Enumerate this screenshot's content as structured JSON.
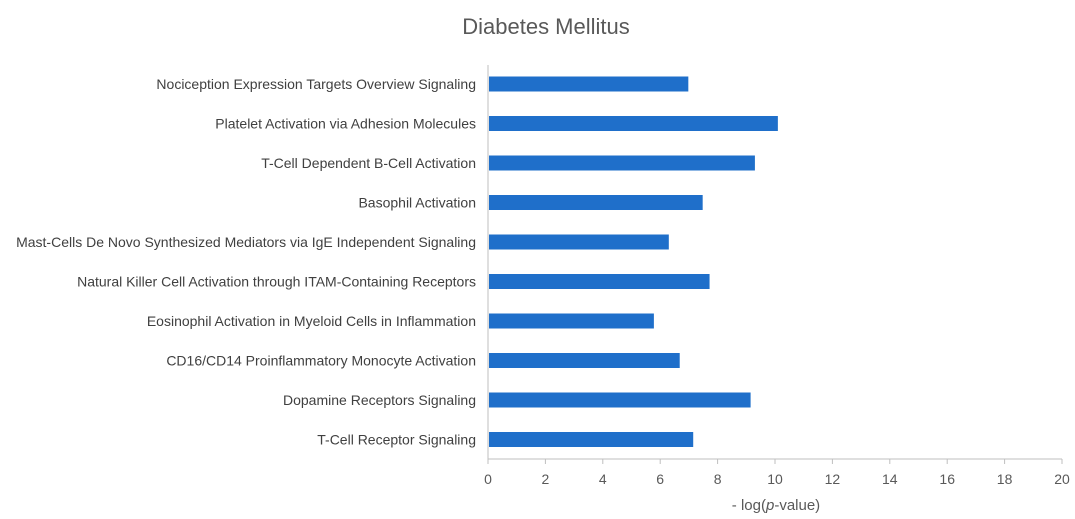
{
  "chart_data": {
    "type": "bar",
    "orientation": "horizontal",
    "title": "Diabetes Mellitus",
    "xlabel_prefix": "- log(",
    "xlabel_italic": "p",
    "xlabel_suffix": "-value)",
    "ylabel": "",
    "xlim": [
      0,
      20
    ],
    "xticks": [
      "0",
      "2",
      "4",
      "6",
      "8",
      "10",
      "12",
      "14",
      "16",
      "18",
      "20"
    ],
    "grid": false,
    "bar_color": "#1f6fca",
    "categories": [
      "Nociception Expression Targets Overview Signaling",
      "Platelet Activation via Adhesion Molecules",
      "T-Cell Dependent B-Cell Activation",
      "Basophil Activation",
      "Mast-Cells De Novo Synthesized Mediators via IgE Independent Signaling",
      "Natural Killer Cell Activation through ITAM-Containing Receptors",
      "Eosinophil Activation in Myeloid Cells in Inflammation",
      "CD16/CD14 Proinflammatory Monocyte Activation",
      "Dopamine Receptors Signaling",
      "T-Cell Receptor Signaling"
    ],
    "values": [
      6.98,
      10.1,
      9.3,
      7.48,
      6.3,
      7.72,
      5.78,
      6.68,
      9.15,
      7.15
    ]
  }
}
